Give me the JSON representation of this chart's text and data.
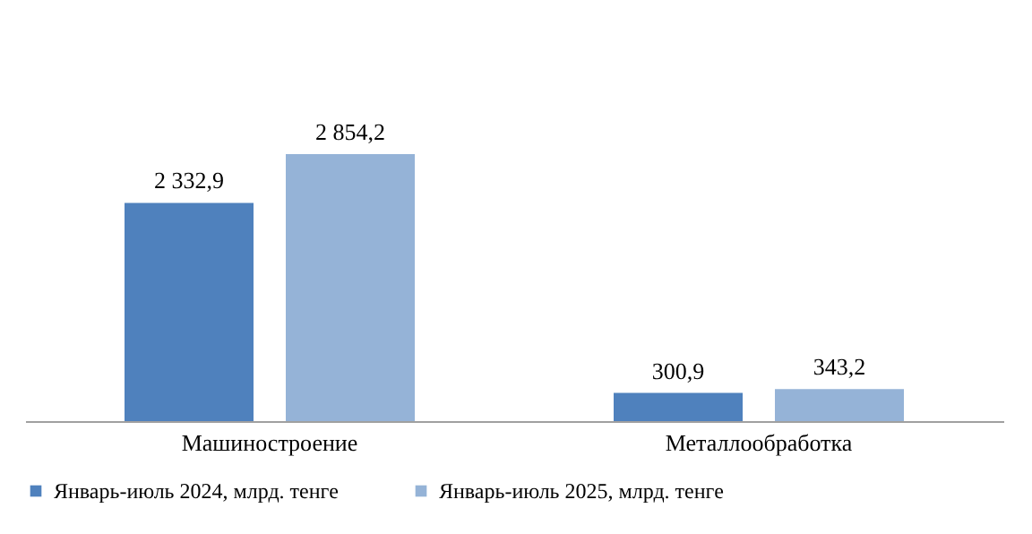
{
  "chart_data": {
    "type": "bar",
    "categories": [
      "Машиностроение",
      "Металлообработка"
    ],
    "series": [
      {
        "name": "Январь-июль 2024, млрд. тенге",
        "color": "#4f81bd",
        "values": [
          2332.9,
          300.9
        ],
        "value_labels": [
          "2 332,9",
          "300,9"
        ]
      },
      {
        "name": "Январь-июль 2025, млрд. тенге",
        "color": "#95b3d7",
        "values": [
          2854.2,
          343.2
        ],
        "value_labels": [
          "2 854,2",
          "343,2"
        ]
      }
    ],
    "legend": "bottom",
    "grid": false
  }
}
